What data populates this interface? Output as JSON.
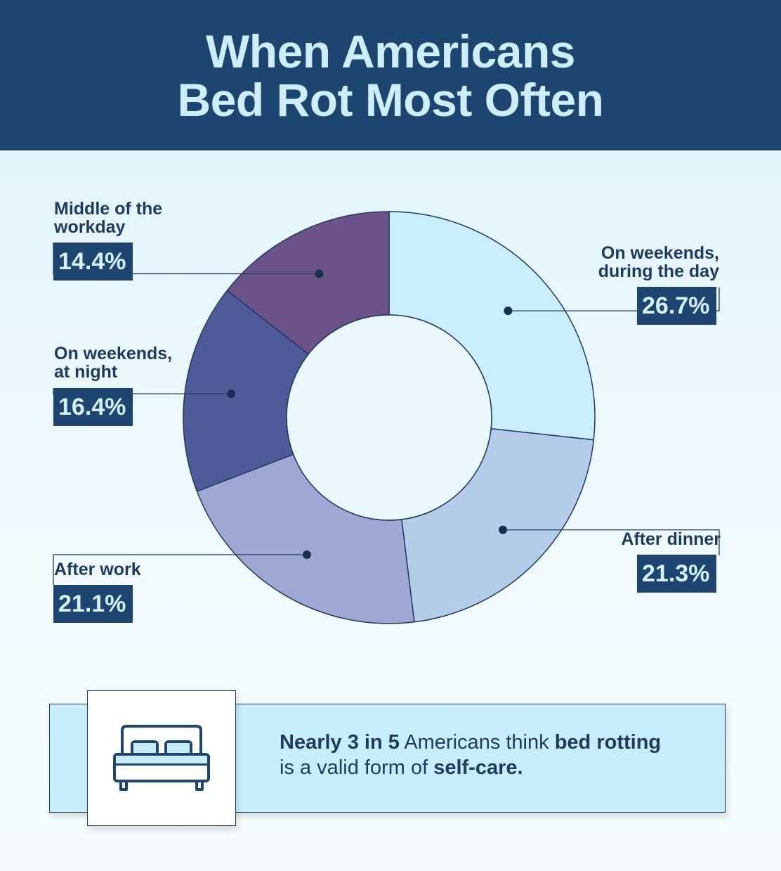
{
  "title": {
    "line1": "When Americans",
    "line2": "Bed Rot Most Often"
  },
  "chart_data": {
    "type": "pie",
    "variant": "donut",
    "start_angle_deg": 0,
    "direction": "clockwise",
    "slices": [
      {
        "label": "On weekends,\nduring the day",
        "value": 26.7,
        "value_label": "26.7%",
        "color": "#c9eefc"
      },
      {
        "label": "After dinner",
        "value": 21.3,
        "value_label": "21.3%",
        "color": "#b4cce7"
      },
      {
        "label": "After work",
        "value": 21.1,
        "value_label": "21.1%",
        "color": "#9ea8d2"
      },
      {
        "label": "On weekends,\nat night",
        "value": 16.4,
        "value_label": "16.4%",
        "color": "#4f5b98"
      },
      {
        "label": "Middle of the\nworkday",
        "value": 14.4,
        "value_label": "14.4%",
        "color": "#6b5289"
      }
    ]
  },
  "callout": {
    "p1": "Nearly 3 in 5",
    "p2": " Americans think ",
    "p3": "bed rotting",
    "p4": "is a valid form of ",
    "p5": "self-care."
  },
  "icon": "bed-icon",
  "colors": {
    "header_bg": "#1e4570",
    "title_text": "#cdeffc",
    "badge_bg": "#1e4570",
    "text_dark": "#1e3a5f"
  }
}
